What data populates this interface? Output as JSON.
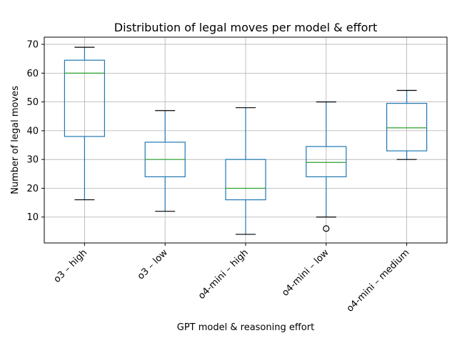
{
  "chart_data": {
    "type": "box",
    "title": "Distribution of legal moves per model & effort",
    "xlabel": "GPT model & reasoning effort",
    "ylabel": "Number of legal moves",
    "ylim": [
      1,
      72.5
    ],
    "yticks": [
      10,
      20,
      30,
      40,
      50,
      60,
      70
    ],
    "grid": true,
    "colors": {
      "box": "#1f77b4",
      "median": "#2ca02c",
      "whisker_cap": "#000000",
      "grid": "#b0b0b0",
      "axes": "#000000"
    },
    "categories": [
      "o3 – high",
      "o3 – low",
      "o4-mini – high",
      "o4-mini – low",
      "o4-mini – medium"
    ],
    "boxes": [
      {
        "category": "o3 – high",
        "whisker_low": 16,
        "q1": 38,
        "median": 60,
        "q3": 64.5,
        "whisker_high": 69,
        "outliers": []
      },
      {
        "category": "o3 – low",
        "whisker_low": 12,
        "q1": 24,
        "median": 30,
        "q3": 36,
        "whisker_high": 47,
        "outliers": []
      },
      {
        "category": "o4-mini – high",
        "whisker_low": 4,
        "q1": 16,
        "median": 20,
        "q3": 30,
        "whisker_high": 48,
        "outliers": []
      },
      {
        "category": "o4-mini – low",
        "whisker_low": 10,
        "q1": 24,
        "median": 29,
        "q3": 34.5,
        "whisker_high": 50,
        "outliers": [
          6
        ]
      },
      {
        "category": "o4-mini – medium",
        "whisker_low": 30,
        "q1": 33,
        "median": 41,
        "q3": 49.5,
        "whisker_high": 54,
        "outliers": []
      }
    ]
  }
}
